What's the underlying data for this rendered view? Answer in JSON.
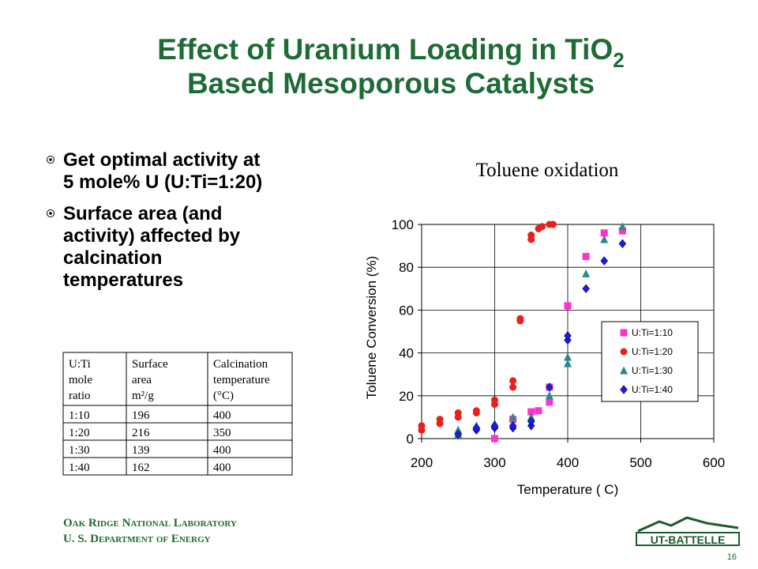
{
  "header": {
    "title_line1": "Effect of Uranium Loading in TiO",
    "title_subscript": "2",
    "title_line2": "Based Mesoporous Catalysts"
  },
  "bullets": [
    [
      "Get optimal activity at",
      "5 mole% U  (U:Ti=1:20)"
    ],
    [
      "Surface area (and",
      "activity) affected by",
      "calcination",
      "temperatures"
    ]
  ],
  "table": {
    "header": [
      [
        "U:Ti",
        "mole",
        "ratio"
      ],
      [
        "Surface",
        "area",
        "m²/g"
      ],
      [
        "Calcination",
        "temperature",
        "(°C)"
      ]
    ],
    "rows": [
      [
        "1:10",
        "196",
        "400"
      ],
      [
        "1:20",
        "216",
        "350"
      ],
      [
        "1:30",
        "139",
        "400"
      ],
      [
        "1:40",
        "162",
        "400"
      ]
    ]
  },
  "chart_data": {
    "type": "scatter",
    "title": "Toluene oxidation",
    "x_label": "Temperature ( C)",
    "y_label": "Toluene Conversion (%)",
    "xlim": [
      200,
      600
    ],
    "xticks": [
      200,
      300,
      400,
      500,
      600
    ],
    "ylim": [
      0,
      100
    ],
    "yticks": [
      0,
      20,
      40,
      60,
      80,
      100
    ],
    "grid": true,
    "legend": "right",
    "series": [
      {
        "name": "U:Ti=1:10",
        "color": "#ff33cc",
        "marker": "square",
        "x": [
          300,
          325,
          350,
          360,
          375,
          375,
          400,
          425,
          450,
          475
        ],
        "values": [
          0,
          9,
          12.5,
          13,
          17,
          24,
          62,
          85,
          96,
          97
        ]
      },
      {
        "name": "U:Ti=1:20",
        "color": "#e8201a",
        "marker": "circle",
        "x": [
          200,
          200,
          225,
          225,
          250,
          250,
          275,
          275,
          300,
          300,
          325,
          325,
          335,
          335,
          350,
          350,
          360,
          365,
          375,
          380
        ],
        "values": [
          4,
          6,
          7,
          9,
          10,
          12,
          12,
          13,
          16,
          18,
          24,
          27,
          55,
          56,
          93,
          95,
          98,
          99,
          100,
          100
        ]
      },
      {
        "name": "U:Ti=1:30",
        "color": "#2a8a8a",
        "marker": "triangle",
        "x": [
          250,
          250,
          275,
          300,
          325,
          350,
          375,
          400,
          400,
          425,
          450,
          475
        ],
        "values": [
          2,
          4,
          6,
          7,
          10,
          10,
          20,
          35,
          38,
          77,
          93,
          99
        ]
      },
      {
        "name": "U:Ti=1:40",
        "color": "#1a1aee",
        "marker": "diamond",
        "x": [
          250,
          275,
          275,
          300,
          300,
          325,
          325,
          350,
          350,
          375,
          400,
          400,
          425,
          450,
          475
        ],
        "values": [
          2,
          4,
          5,
          5,
          6,
          5,
          6,
          6,
          8,
          24,
          46,
          48,
          70,
          83,
          91
        ]
      }
    ]
  },
  "footer": {
    "line1": "Oak Ridge National Laboratory",
    "line2": "U. S. Department of Energy",
    "logo": "UT-BATTELLE",
    "page": "16"
  }
}
